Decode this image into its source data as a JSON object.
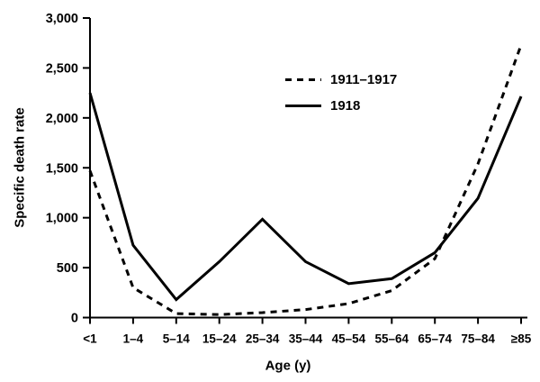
{
  "figure": {
    "background": "#ffffff",
    "ink_color": "#000000"
  },
  "chart_data": {
    "type": "line",
    "title": "",
    "xlabel": "Age (y)",
    "ylabel": "Specific death rate",
    "categories": [
      "<1",
      "1–4",
      "5–14",
      "15–24",
      "25–34",
      "35–44",
      "45–54",
      "55–64",
      "65–74",
      "75–84",
      "≥85"
    ],
    "ylim": [
      0,
      3000
    ],
    "yticks": {
      "values": [
        0,
        500,
        1000,
        1500,
        2000,
        2500,
        3000
      ],
      "labels": [
        "0",
        "500",
        "1,000",
        "1,500",
        "2,000",
        "2,500",
        "3,000"
      ]
    },
    "grid": false,
    "legend_position": "upper-middle",
    "series": [
      {
        "name": "1911–1917",
        "style": "dashed",
        "color": "#000000",
        "values": [
          1470,
          300,
          40,
          30,
          50,
          80,
          140,
          270,
          590,
          1540,
          2730
        ]
      },
      {
        "name": "1918",
        "style": "solid",
        "color": "#000000",
        "values": [
          2250,
          725,
          180,
          560,
          985,
          560,
          340,
          390,
          650,
          1195,
          2215
        ]
      }
    ]
  }
}
